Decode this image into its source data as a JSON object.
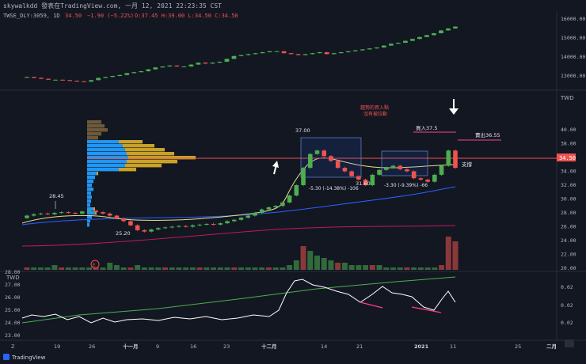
{
  "header": {
    "line1": "skywalkdd 發表在TradingView.com, 一月 12, 2021 22:23:35 CST",
    "line2_symbol": "TWSE_DLY:3059, 1D",
    "line2_price": "34.50",
    "line2_change": "−1.90 (−5.22%)",
    "line2_ohlc": "O:37.45 H:39.00 L:34.50 C:34.50"
  },
  "top_panel": {
    "ylabels": [
      "16000.00",
      "15000.00",
      "14000.00",
      "13000.00"
    ],
    "yvalues": [
      16000,
      15000,
      14000,
      13000
    ]
  },
  "main_panel": {
    "currency": "TWD",
    "ylabels": [
      "40.00",
      "38.00",
      "36.00",
      "34.00",
      "32.00",
      "30.00",
      "28.00",
      "26.00",
      "24.00",
      "22.00",
      "20.00"
    ],
    "yvalues": [
      40,
      38,
      36,
      34,
      32,
      30,
      28,
      26,
      24,
      22,
      20
    ],
    "last_price_tag": "34.50",
    "annotations": {
      "note1": "趨勢的買入點",
      "note2": "沒有被拉動",
      "buy": "買入37.5",
      "sell": "賣出36.55",
      "support": "支撐",
      "hi1": "37.00",
      "lo1": "31.60",
      "low_point": "25.20",
      "mark_2845": "28.45",
      "range1": "-5.30 (-14.38%) -106",
      "range2": "-3.30 (-9.39%) -66",
      "earnings_marker": "E"
    }
  },
  "osc_panel": {
    "currency": "TWD",
    "ylabels_left": [
      "28.00",
      "27.00",
      "26.00",
      "25.00",
      "24.00",
      "23.00"
    ],
    "ylabels_right": [
      "0.02",
      "0.02",
      "0.02"
    ]
  },
  "x_axis": {
    "labels": [
      "Z",
      "19",
      "26",
      "十一月",
      "9",
      "16",
      "23",
      "十二月",
      "14",
      "21",
      "2021",
      "11",
      "25",
      "二月"
    ],
    "bold": [
      "十一月",
      "十二月",
      "2021",
      "二月"
    ]
  },
  "footer": {
    "brand": "TradingView"
  },
  "colors": {
    "background": "#131722",
    "up": "#4caf50",
    "down": "#ef5350",
    "volume_profile_blue": "#2196f3",
    "volume_profile_gold": "#c9a227",
    "volume_profile_brown": "#6d5a3a",
    "ma_blue": "#2962ff",
    "ma_yellow": "#e8dd8c",
    "ma_red": "#c2185b",
    "annotation_pink": "#ff4081"
  },
  "chart_data": [
    {
      "type": "line",
      "series": [
        {
          "values": [
            12950,
            12900,
            12850,
            12800,
            12800,
            12780,
            12750,
            12720,
            12700,
            12780,
            12900,
            12950,
            13000,
            13050,
            13150,
            13200,
            13250,
            13350,
            13450,
            13500,
            13550,
            13500,
            13500,
            13600,
            13700,
            13650,
            13700,
            13750,
            13900,
            14050,
            14100,
            14150,
            14200,
            14250,
            14300,
            14300,
            14200,
            14150,
            14100,
            14150,
            14200,
            14250,
            14150,
            14200,
            14250,
            14300,
            14350,
            14400,
            14450,
            14500,
            14600,
            14700,
            14750,
            14850,
            14950,
            15050,
            15150,
            15250,
            15400,
            15500,
            15600
          ]
        }
      ]
    },
    {
      "type": "line",
      "series": [
        {
          "values": [
            27.6,
            27.8,
            27.9,
            27.8,
            28.0,
            28.1,
            28.0,
            27.9,
            28.2,
            28.3,
            28.1,
            27.9,
            27.6,
            27.2,
            26.8,
            26.2,
            25.5,
            25.3,
            25.6,
            25.8,
            25.9,
            26.0,
            26.1,
            26.0,
            26.2,
            26.3,
            26.4,
            26.3,
            26.5,
            26.8,
            27.0,
            27.3,
            27.6,
            28.0,
            28.5,
            28.8,
            29.0,
            29.5,
            30.5,
            32.0,
            34.5,
            36.5,
            37.0,
            36.2,
            35.5,
            34.5,
            34.0,
            33.3,
            32.8,
            32.0,
            33.5,
            34.2,
            34.5,
            34.8,
            34.3,
            34.0,
            33.0,
            32.8,
            32.5,
            33.5,
            34.8,
            37.0,
            34.5
          ]
        }
      ]
    }
  ]
}
